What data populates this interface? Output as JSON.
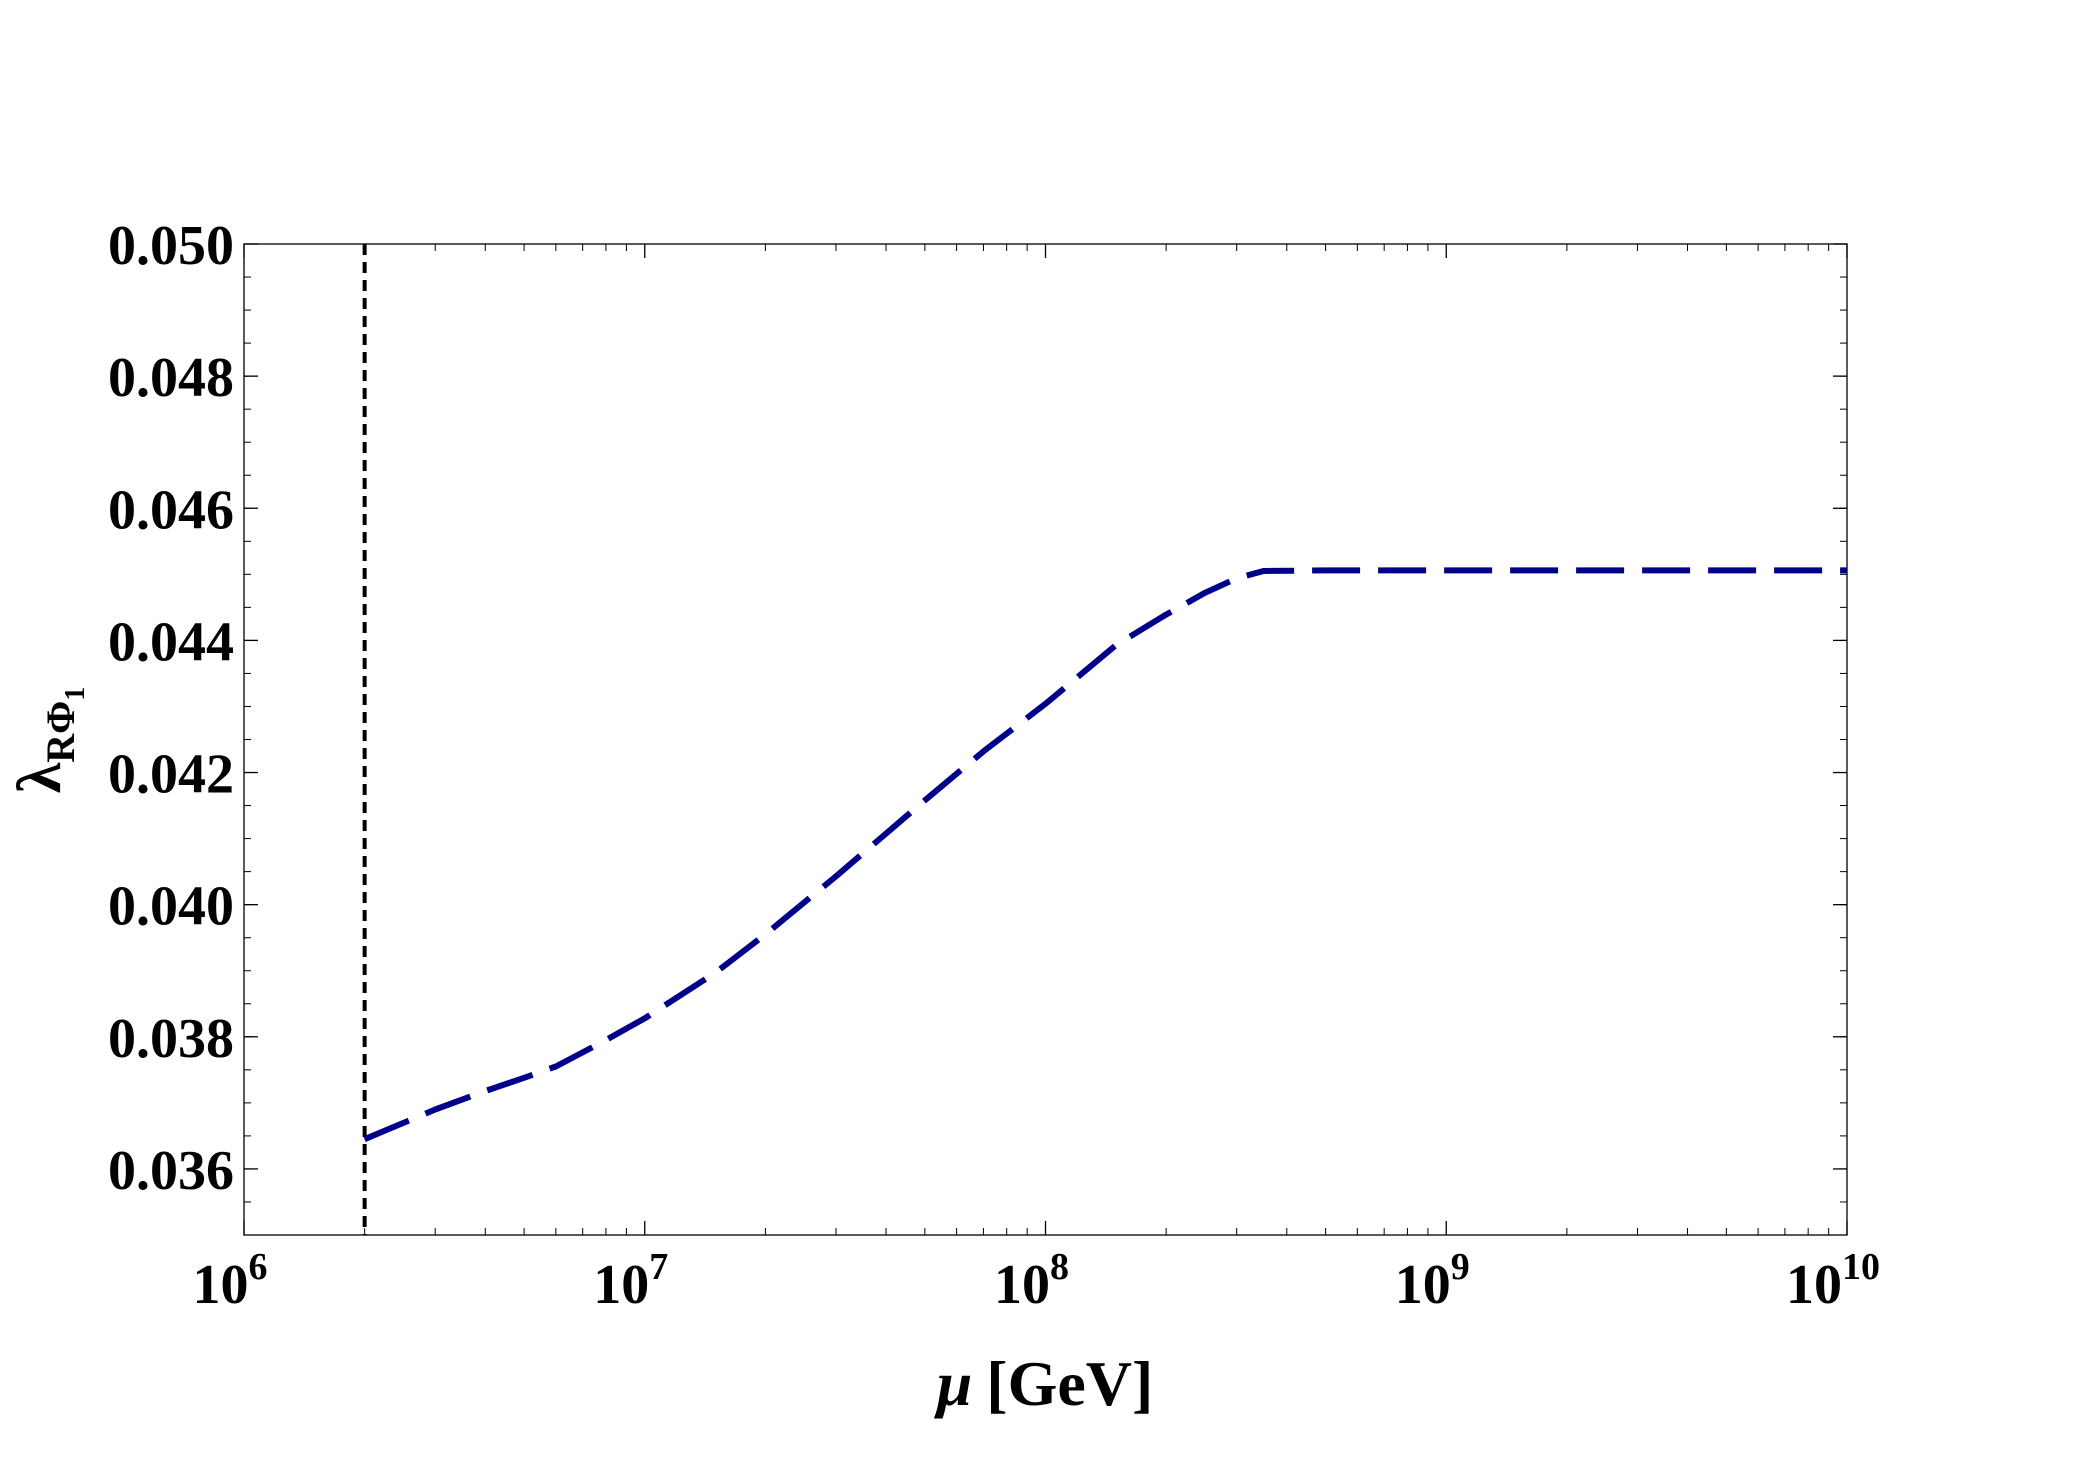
{
  "chart_data": {
    "type": "line",
    "title": "",
    "xlabel": {
      "symbol": "μ",
      "unit": "[GeV]"
    },
    "ylabel": {
      "symbol": "λ",
      "sub": "RΦ",
      "subsub": "1"
    },
    "x_scale": "log",
    "xlim": [
      1000000,
      10000000000
    ],
    "ylim": [
      0.035,
      0.05
    ],
    "x_ticks": [
      {
        "value": 1000000,
        "base": "10",
        "exp": "6"
      },
      {
        "value": 10000000,
        "base": "10",
        "exp": "7"
      },
      {
        "value": 100000000,
        "base": "10",
        "exp": "8"
      },
      {
        "value": 1000000000,
        "base": "10",
        "exp": "9"
      },
      {
        "value": 10000000000,
        "base": "10",
        "exp": "10"
      }
    ],
    "y_ticks": [
      {
        "value": 0.036,
        "label": "0.036"
      },
      {
        "value": 0.038,
        "label": "0.038"
      },
      {
        "value": 0.04,
        "label": "0.040"
      },
      {
        "value": 0.042,
        "label": "0.042"
      },
      {
        "value": 0.044,
        "label": "0.044"
      },
      {
        "value": 0.046,
        "label": "0.046"
      },
      {
        "value": 0.048,
        "label": "0.048"
      },
      {
        "value": 0.05,
        "label": "0.050"
      }
    ],
    "grid": false,
    "legend": "none",
    "reference_line": {
      "orientation": "vertical",
      "x": 2000000,
      "color": "#000000",
      "style": "dashed"
    },
    "series": [
      {
        "color": "#00008b",
        "style": "dashed",
        "x": [
          2000000,
          3000000,
          4000000,
          5000000,
          6000000,
          8000000,
          10000000,
          15000000,
          20000000,
          30000000,
          50000000,
          70000000,
          100000000,
          150000000,
          200000000,
          250000000,
          300000000,
          350000000,
          500000000,
          1000000000,
          3000000000,
          10000000000
        ],
        "y": [
          0.03645,
          0.0369,
          0.03718,
          0.03738,
          0.03755,
          0.03795,
          0.03828,
          0.03897,
          0.03955,
          0.04043,
          0.04158,
          0.04232,
          0.04304,
          0.04393,
          0.04439,
          0.04472,
          0.04494,
          0.04505,
          0.04506,
          0.04506,
          0.04506,
          0.04506
        ]
      }
    ]
  }
}
